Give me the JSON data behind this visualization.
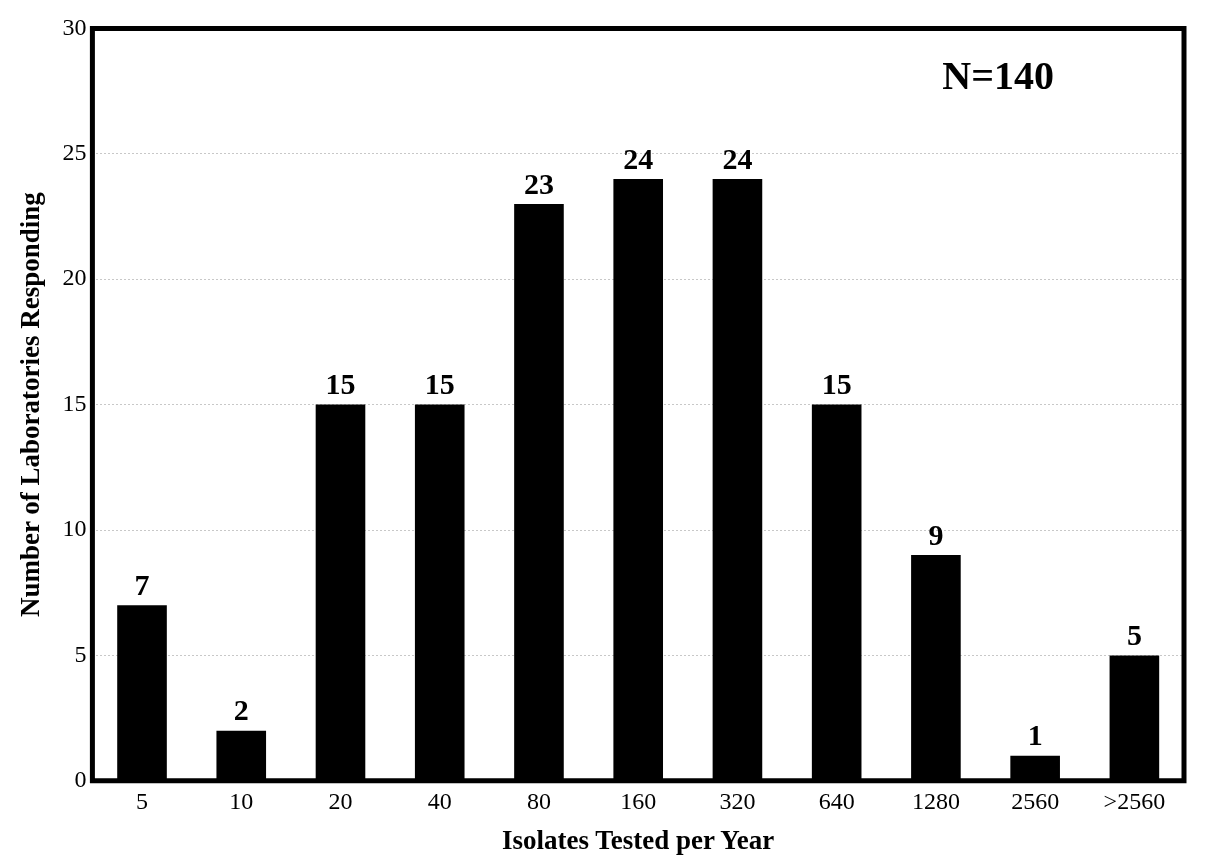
{
  "chart_data": {
    "type": "bar",
    "xlabel": "Isolates Tested per Year",
    "ylabel": "Number of Laboratories Responding",
    "categories": [
      "5",
      "10",
      "20",
      "40",
      "80",
      "160",
      "320",
      "640",
      "1280",
      "2560",
      ">2560"
    ],
    "values": [
      7,
      2,
      15,
      15,
      23,
      24,
      24,
      15,
      9,
      1,
      5
    ],
    "color": "#000000",
    "ylim": [
      0,
      30
    ],
    "yticks": [
      0,
      5,
      10,
      15,
      20,
      25,
      30
    ],
    "grid": "y",
    "data_labels": true,
    "annotations": [
      "N=140"
    ]
  }
}
